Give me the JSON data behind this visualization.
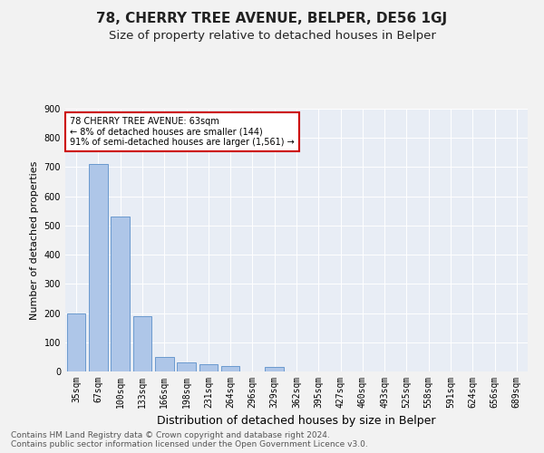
{
  "title": "78, CHERRY TREE AVENUE, BELPER, DE56 1GJ",
  "subtitle": "Size of property relative to detached houses in Belper",
  "xlabel": "Distribution of detached houses by size in Belper",
  "ylabel": "Number of detached properties",
  "categories": [
    "35sqm",
    "67sqm",
    "100sqm",
    "133sqm",
    "166sqm",
    "198sqm",
    "231sqm",
    "264sqm",
    "296sqm",
    "329sqm",
    "362sqm",
    "395sqm",
    "427sqm",
    "460sqm",
    "493sqm",
    "525sqm",
    "558sqm",
    "591sqm",
    "624sqm",
    "656sqm",
    "689sqm"
  ],
  "values": [
    200,
    710,
    530,
    190,
    50,
    30,
    25,
    20,
    0,
    15,
    0,
    0,
    0,
    0,
    0,
    0,
    0,
    0,
    0,
    0,
    0
  ],
  "bar_color": "#aec6e8",
  "bar_edge_color": "#5b8fc9",
  "annotation_text": "78 CHERRY TREE AVENUE: 63sqm\n← 8% of detached houses are smaller (144)\n91% of semi-detached houses are larger (1,561) →",
  "annotation_box_color": "#ffffff",
  "annotation_border_color": "#cc0000",
  "ylim": [
    0,
    900
  ],
  "yticks": [
    0,
    100,
    200,
    300,
    400,
    500,
    600,
    700,
    800,
    900
  ],
  "background_color": "#e8edf5",
  "grid_color": "#ffffff",
  "footer": "Contains HM Land Registry data © Crown copyright and database right 2024.\nContains public sector information licensed under the Open Government Licence v3.0.",
  "title_fontsize": 11,
  "subtitle_fontsize": 9.5,
  "xlabel_fontsize": 9,
  "ylabel_fontsize": 8,
  "tick_fontsize": 7,
  "annot_fontsize": 7,
  "footer_fontsize": 6.5
}
